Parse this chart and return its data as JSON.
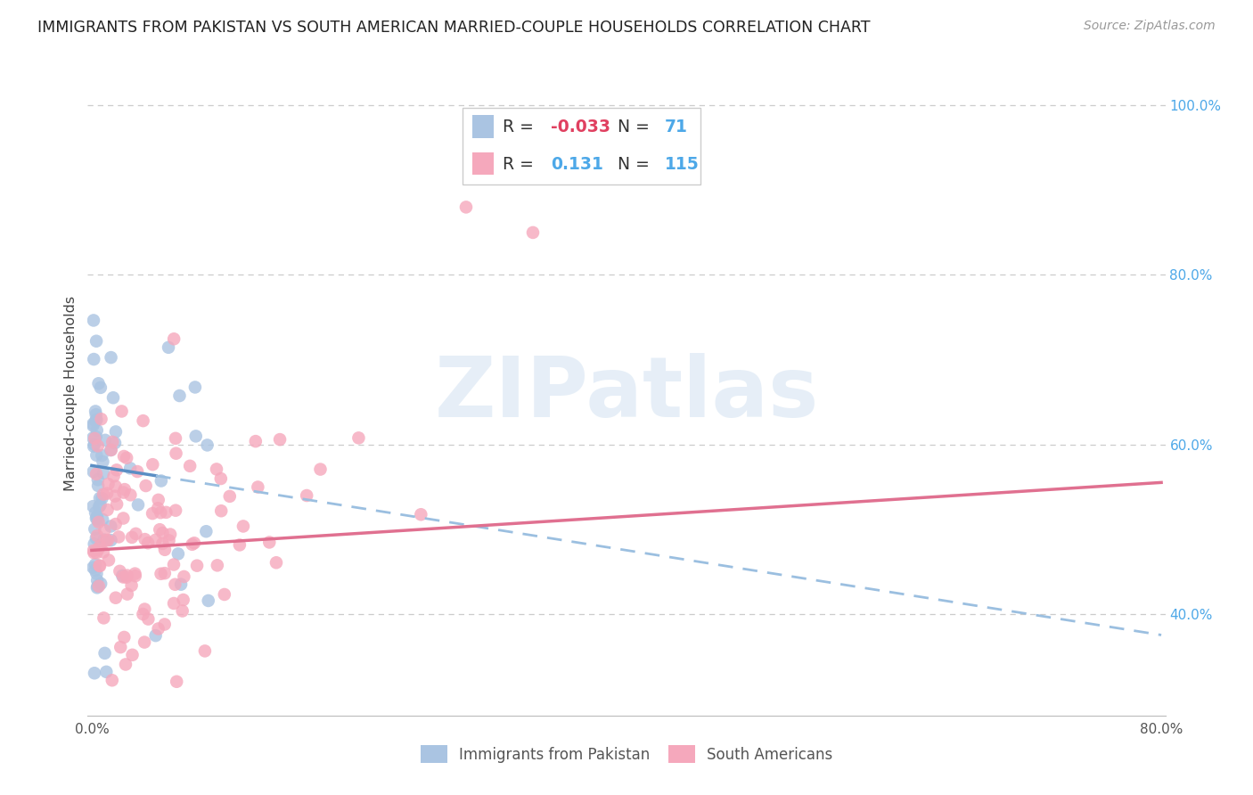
{
  "title": "IMMIGRANTS FROM PAKISTAN VS SOUTH AMERICAN MARRIED-COUPLE HOUSEHOLDS CORRELATION CHART",
  "source": "Source: ZipAtlas.com",
  "ylabel": "Married-couple Households",
  "right_yticks_vals": [
    1.0,
    0.8,
    0.6,
    0.4
  ],
  "right_yticks_labels": [
    "100.0%",
    "80.0%",
    "60.0%",
    "40.0%"
  ],
  "legend1_label": "Immigrants from Pakistan",
  "legend2_label": "South Americans",
  "R1": "-0.033",
  "N1": "71",
  "R2": "0.131",
  "N2": "115",
  "color_pakistan": "#aac4e2",
  "color_south_american": "#f5a8bc",
  "color_line_pakistan_solid": "#5b8ec4",
  "color_line_pakistan_dashed": "#9bbfe0",
  "color_line_south_american": "#e07090",
  "color_tick_labels": "#4da8e8",
  "color_grid": "#cccccc",
  "color_title": "#222222",
  "color_source": "#999999",
  "watermark_color": "#dce8f4",
  "watermark_alpha": 0.7,
  "xlim": [
    -0.003,
    0.803
  ],
  "ylim": [
    0.28,
    1.04
  ],
  "xmin": 0.0,
  "xmax": 0.8,
  "pak_line_solid_end": 0.048
}
